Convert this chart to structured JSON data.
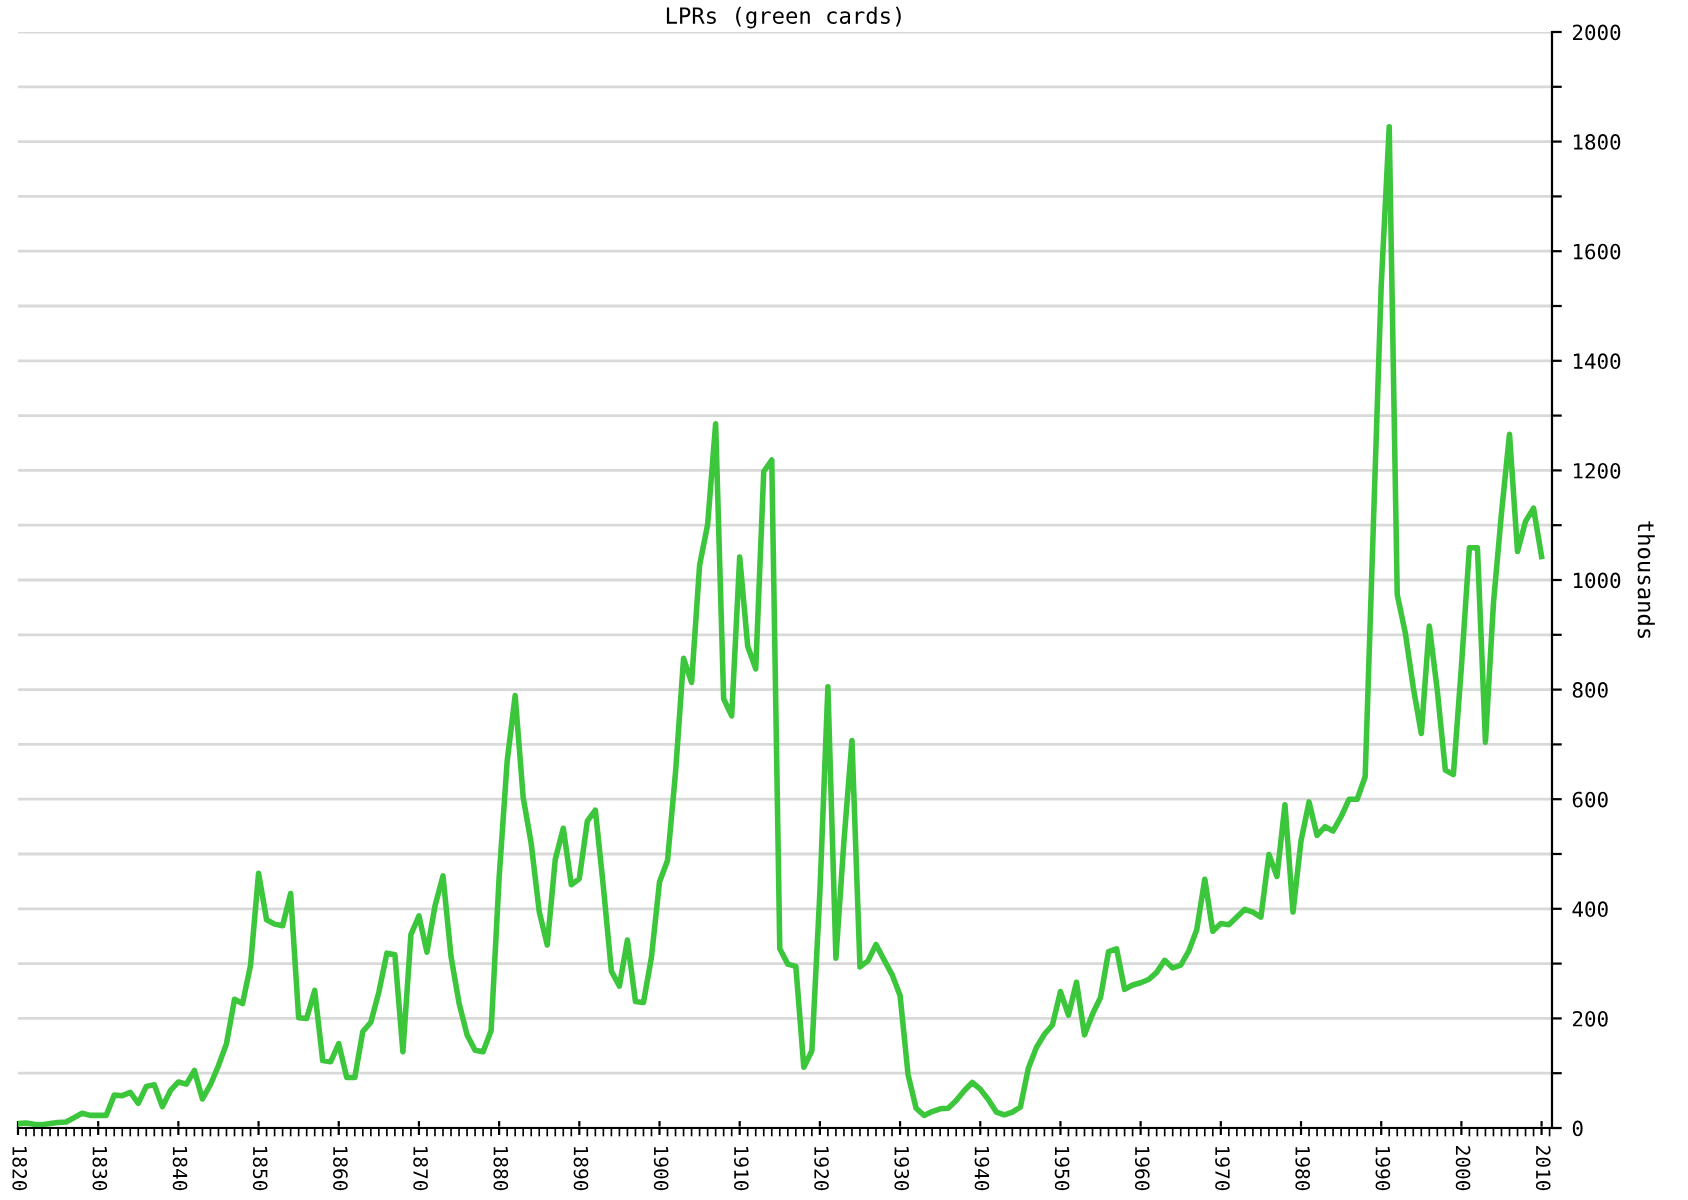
{
  "chart_data": {
    "type": "line",
    "title": "LPRs (green cards)",
    "ylabel": "thousands",
    "x": [
      1820,
      1821,
      1822,
      1823,
      1824,
      1825,
      1826,
      1827,
      1828,
      1829,
      1830,
      1831,
      1832,
      1833,
      1834,
      1835,
      1836,
      1837,
      1838,
      1839,
      1840,
      1841,
      1842,
      1843,
      1844,
      1845,
      1846,
      1847,
      1848,
      1849,
      1850,
      1851,
      1852,
      1853,
      1854,
      1855,
      1856,
      1857,
      1858,
      1859,
      1860,
      1861,
      1862,
      1863,
      1864,
      1865,
      1866,
      1867,
      1868,
      1869,
      1870,
      1871,
      1872,
      1873,
      1874,
      1875,
      1876,
      1877,
      1878,
      1879,
      1880,
      1881,
      1882,
      1883,
      1884,
      1885,
      1886,
      1887,
      1888,
      1889,
      1890,
      1891,
      1892,
      1893,
      1894,
      1895,
      1896,
      1897,
      1898,
      1899,
      1900,
      1901,
      1902,
      1903,
      1904,
      1905,
      1906,
      1907,
      1908,
      1909,
      1910,
      1911,
      1912,
      1913,
      1914,
      1915,
      1916,
      1917,
      1918,
      1919,
      1920,
      1921,
      1922,
      1923,
      1924,
      1925,
      1926,
      1927,
      1928,
      1929,
      1930,
      1931,
      1932,
      1933,
      1934,
      1935,
      1936,
      1937,
      1938,
      1939,
      1940,
      1941,
      1942,
      1943,
      1944,
      1945,
      1946,
      1947,
      1948,
      1949,
      1950,
      1951,
      1952,
      1953,
      1954,
      1955,
      1956,
      1957,
      1958,
      1959,
      1960,
      1961,
      1962,
      1963,
      1964,
      1965,
      1966,
      1967,
      1968,
      1969,
      1970,
      1971,
      1972,
      1973,
      1974,
      1975,
      1976,
      1977,
      1978,
      1979,
      1980,
      1981,
      1982,
      1983,
      1984,
      1985,
      1986,
      1987,
      1988,
      1989,
      1990,
      1991,
      1992,
      1993,
      1994,
      1995,
      1996,
      1997,
      1998,
      1999,
      2000,
      2001,
      2002,
      2003,
      2004,
      2005,
      2006,
      2007,
      2008,
      2009,
      2010
    ],
    "series": [
      {
        "color": "#3cc63c",
        "values": [
          8,
          9,
          7,
          6,
          8,
          10,
          11,
          19,
          27,
          23,
          23,
          23,
          60,
          59,
          65,
          45,
          76,
          79,
          39,
          68,
          84,
          80,
          105,
          53,
          79,
          114,
          154,
          235,
          227,
          297,
          465,
          380,
          372,
          369,
          428,
          201,
          200,
          251,
          123,
          121,
          154,
          92,
          92,
          176,
          193,
          248,
          319,
          316,
          139,
          353,
          387,
          321,
          405,
          460,
          313,
          228,
          170,
          142,
          139,
          178,
          457,
          669,
          789,
          603,
          519,
          395,
          334,
          490,
          547,
          444,
          455,
          560,
          580,
          440,
          286,
          259,
          343,
          231,
          229,
          312,
          449,
          488,
          649,
          857,
          813,
          1027,
          1101,
          1285,
          783,
          752,
          1042,
          879,
          838,
          1198,
          1219,
          327,
          299,
          295,
          111,
          141,
          430,
          805,
          310,
          523,
          707,
          294,
          305,
          335,
          307,
          280,
          242,
          97,
          36,
          23,
          30,
          35,
          36,
          50,
          68,
          83,
          71,
          52,
          29,
          24,
          29,
          38,
          109,
          147,
          171,
          188,
          249,
          206,
          266,
          170,
          208,
          238,
          322,
          327,
          253,
          261,
          265,
          271,
          284,
          306,
          292,
          297,
          323,
          362,
          454,
          359,
          373,
          371,
          385,
          399,
          394,
          385,
          499,
          459,
          590,
          394,
          524,
          595,
          534,
          550,
          542,
          568,
          600,
          600,
          641,
          1090,
          1536,
          1827,
          973,
          904,
          804,
          720,
          916,
          798,
          653,
          645,
          841,
          1059,
          1059,
          704,
          958,
          1122,
          1266,
          1052,
          1107,
          1131,
          1043
        ]
      }
    ],
    "xlim": [
      1820,
      2011.3
    ],
    "xticks": [
      1820,
      1830,
      1840,
      1850,
      1860,
      1870,
      1880,
      1890,
      1900,
      1910,
      1920,
      1930,
      1940,
      1950,
      1960,
      1970,
      1980,
      1990,
      2000,
      2010
    ],
    "ylim": [
      0,
      2000
    ],
    "yticks": [
      0,
      {
        "value": 100,
        "label": null
      },
      200,
      {
        "value": 300,
        "label": null
      },
      400,
      {
        "value": 500,
        "label": null
      },
      600,
      {
        "value": 700,
        "label": null
      },
      800,
      {
        "value": 900,
        "label": null
      },
      1000,
      {
        "value": 1100,
        "label": null
      },
      1200,
      {
        "value": 1300,
        "label": null
      },
      1400,
      {
        "value": 1500,
        "label": null
      },
      1600,
      {
        "value": 1700,
        "label": null
      },
      1800,
      {
        "value": 1900,
        "label": null
      },
      2000
    ],
    "grid": "y",
    "marker": "none",
    "line_style": "solid",
    "legend": false
  }
}
